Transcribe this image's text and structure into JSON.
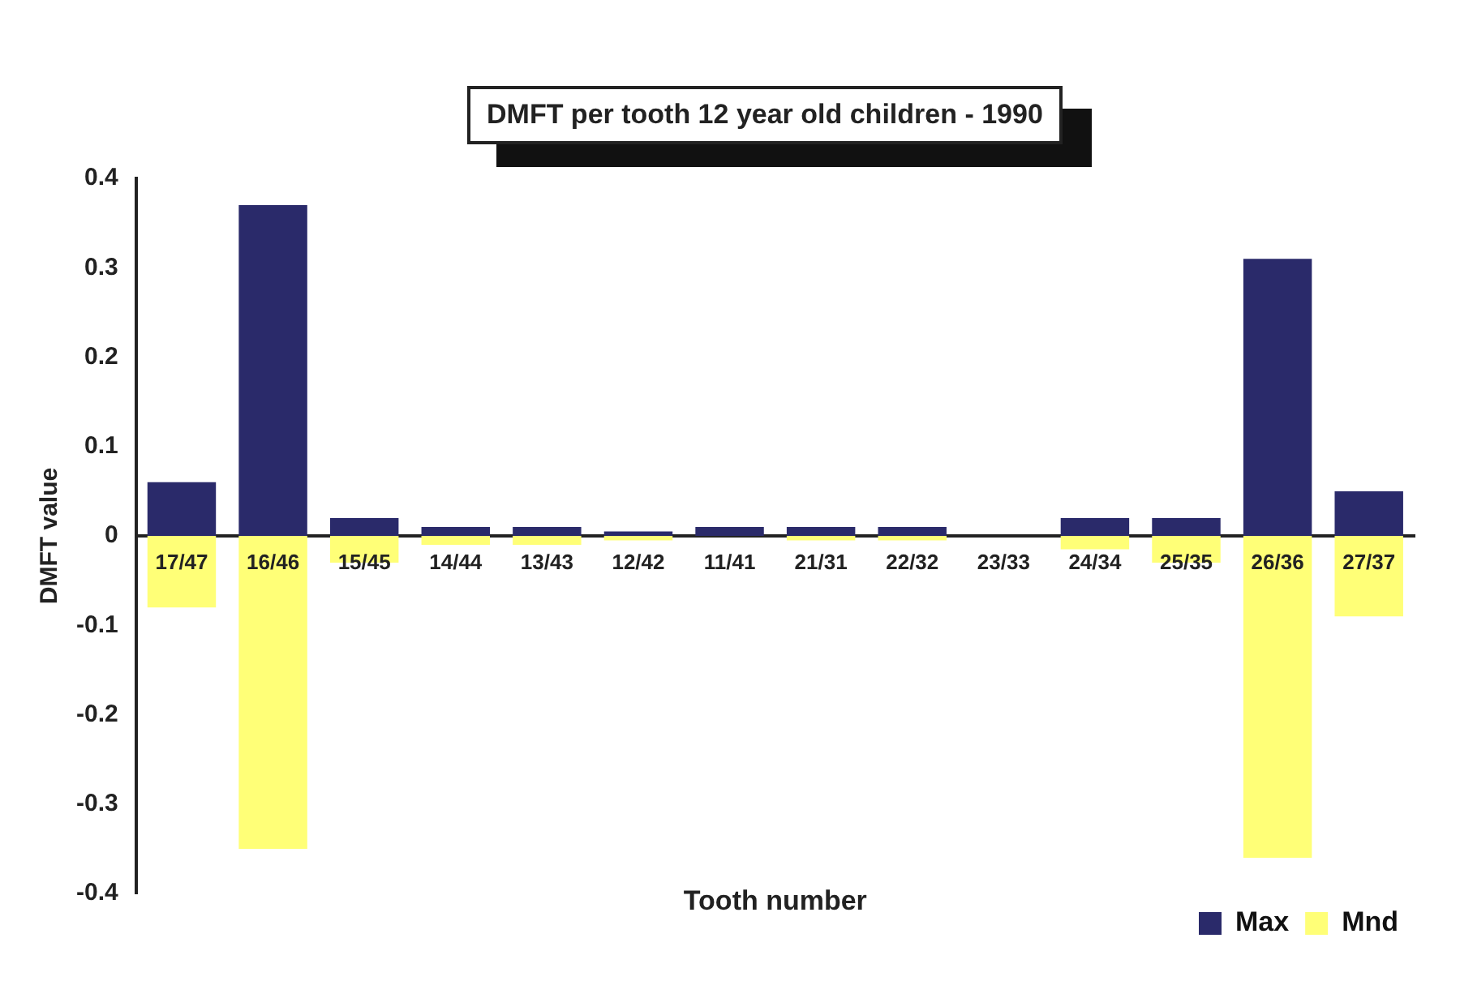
{
  "chart_data": {
    "type": "bar",
    "title": "DMFT per tooth 12 year old children - 1990",
    "xlabel": "Tooth number",
    "ylabel": "DMFT value",
    "categories": [
      "17/47",
      "16/46",
      "15/45",
      "14/44",
      "13/43",
      "12/42",
      "11/41",
      "21/31",
      "22/32",
      "23/33",
      "24/34",
      "25/35",
      "26/36",
      "27/37"
    ],
    "series": [
      {
        "name": "Max",
        "color": "#2a2a6a",
        "values": [
          0.06,
          0.37,
          0.02,
          0.01,
          0.01,
          0.005,
          0.01,
          0.01,
          0.01,
          0,
          0.02,
          0.02,
          0.31,
          0.05
        ]
      },
      {
        "name": "Mnd",
        "color": "#ffff77",
        "values": [
          -0.08,
          -0.35,
          -0.03,
          -0.01,
          -0.01,
          -0.005,
          0,
          -0.005,
          -0.005,
          0,
          -0.015,
          -0.03,
          -0.36,
          -0.09
        ]
      }
    ],
    "stacked": true,
    "ylim": [
      -0.4,
      0.4
    ],
    "yticks": [
      -0.4,
      -0.3,
      -0.2,
      -0.1,
      0,
      0.1,
      0.2,
      0.3,
      0.4
    ],
    "grid": false,
    "legend": "bottom right"
  }
}
